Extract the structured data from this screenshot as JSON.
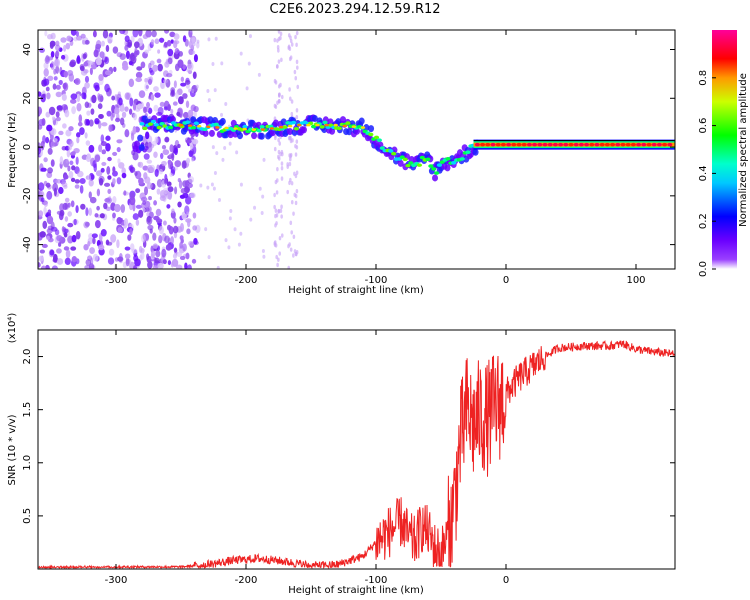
{
  "title": "C2E6.2023.294.12.59.R12",
  "colors": {
    "snr_line": "#ee2222",
    "speckle": "#7a30e8",
    "frame": "#000000"
  },
  "chart_data": [
    {
      "type": "heatmap",
      "xlabel": "Height of straight line (km)",
      "ylabel": "Frequency (Hz)",
      "xlim": [
        -360,
        130
      ],
      "ylim": [
        -50,
        48
      ],
      "xticks": [
        -300,
        -200,
        -100,
        0,
        100
      ],
      "yticks": [
        -40,
        -20,
        0,
        20,
        40
      ],
      "colorbar": {
        "label": "Normalized spectral amplitude",
        "range": [
          0.0,
          1.0
        ],
        "ticks": [
          0.0,
          0.2,
          0.4,
          0.6,
          0.8
        ],
        "tick_labels": [
          "0.0",
          "0.2",
          "0.4",
          "0.6",
          "0.8"
        ],
        "colormap": [
          "#ffffff",
          "#7b00ff",
          "#0000ff",
          "#00ffff",
          "#00ff00",
          "#ffff00",
          "#ff0000",
          "#ff00aa"
        ]
      },
      "noise_region": {
        "x": [
          -360,
          -245
        ],
        "y": [
          -50,
          48
        ]
      },
      "faint_bands": [
        [
          -178,
          -172
        ],
        [
          -168,
          -160
        ]
      ],
      "ridge": [
        {
          "x": -280,
          "y": 9
        },
        {
          "x": -250,
          "y": 9
        },
        {
          "x": -220,
          "y": 8
        },
        {
          "x": -190,
          "y": 7
        },
        {
          "x": -160,
          "y": 9
        },
        {
          "x": -130,
          "y": 9
        },
        {
          "x": -110,
          "y": 8
        },
        {
          "x": -100,
          "y": 3
        },
        {
          "x": -90,
          "y": -2
        },
        {
          "x": -80,
          "y": -5
        },
        {
          "x": -70,
          "y": -8
        },
        {
          "x": -60,
          "y": -4
        },
        {
          "x": -55,
          "y": -10
        },
        {
          "x": -45,
          "y": -6
        },
        {
          "x": -35,
          "y": -4
        },
        {
          "x": -25,
          "y": 0
        },
        {
          "x": 0,
          "y": 1
        },
        {
          "x": 50,
          "y": 1
        },
        {
          "x": 100,
          "y": 1
        },
        {
          "x": 130,
          "y": 1
        }
      ]
    },
    {
      "type": "line",
      "xlabel": "Height of straight line (km)",
      "ylabel": "SNR (10 * v/v)",
      "multiplier_label": "(x10⁴)",
      "xlim": [
        -360,
        130
      ],
      "ylim": [
        0,
        2.25
      ],
      "xticks": [
        -300,
        -200,
        -100,
        0
      ],
      "yticks": [
        0.5,
        1.0,
        1.5,
        2.0
      ],
      "ytick_labels": [
        "0.5",
        "1.0",
        "1.5",
        "2.0"
      ],
      "series": [
        {
          "x": [
            -360,
            -300,
            -250,
            -230,
            -210,
            -190,
            -170,
            -150,
            -130,
            -120,
            -110,
            -100,
            -90,
            -80,
            -75,
            -70,
            -65,
            -60,
            -55,
            -50,
            -45,
            -40,
            -35,
            -30,
            -25,
            -20,
            -15,
            -10,
            -5,
            0,
            10,
            20,
            30,
            40,
            60,
            80,
            90,
            100,
            110,
            130
          ],
          "y": [
            0.0,
            0.02,
            0.02,
            0.04,
            0.08,
            0.1,
            0.07,
            0.03,
            0.04,
            0.08,
            0.12,
            0.25,
            0.35,
            0.45,
            0.3,
            0.25,
            0.4,
            0.35,
            0.2,
            0.15,
            0.3,
            0.6,
            1.2,
            1.5,
            1.35,
            1.45,
            1.4,
            1.5,
            1.55,
            1.65,
            1.8,
            1.9,
            2.0,
            2.08,
            2.1,
            2.1,
            2.12,
            2.07,
            2.05,
            2.02
          ]
        }
      ]
    }
  ]
}
